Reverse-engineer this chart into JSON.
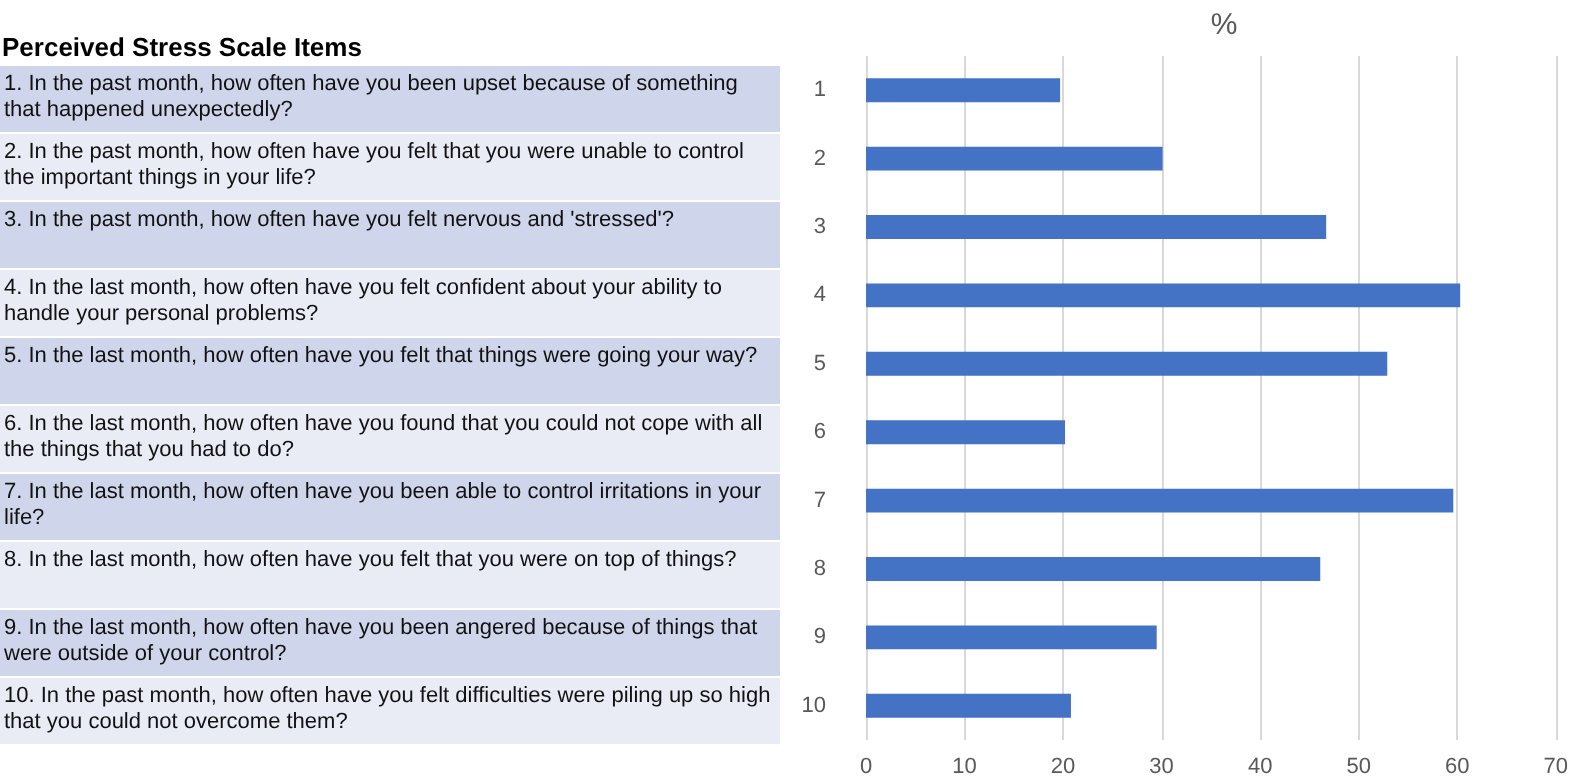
{
  "chart_data": {
    "type": "bar",
    "orientation": "horizontal",
    "title": "Perceived Stress Scale Items",
    "xlabel": "%",
    "categories": [
      "1",
      "2",
      "3",
      "4",
      "5",
      "6",
      "7",
      "8",
      "9",
      "10"
    ],
    "values": [
      19.7,
      30.1,
      46.7,
      60.3,
      52.9,
      20.2,
      59.6,
      46.1,
      29.5,
      20.8
    ],
    "color": "#4472c4",
    "xlim": [
      0,
      70
    ],
    "xticks": [
      0,
      10,
      20,
      30,
      40,
      50,
      60,
      70
    ],
    "grid": "x",
    "annotations": [
      "1. In the past month, how often have you been upset because of something that happened unexpectedly?",
      "2. In the past month, how often have you felt that you were unable to control the important things in your life?",
      "3. In the past month, how often have you felt nervous and 'stressed'?",
      "4. In the last month, how often have you felt confident about your ability to handle your personal problems?",
      "5. In the last month, how often have you felt that things were going your way?",
      "6.  In the last month, how often have you found that you could not cope with all the things that you had to do?",
      "7.  In the last month, how often have you been able to control irritations in your life?",
      "8.  In the last month, how often have you felt that you were on top of things?",
      "9.  In the last month, how often have you been angered because of things that were outside of your control?",
      "10.  In the past month, how often have you felt difficulties were piling up so high that you could not overcome them?"
    ]
  }
}
